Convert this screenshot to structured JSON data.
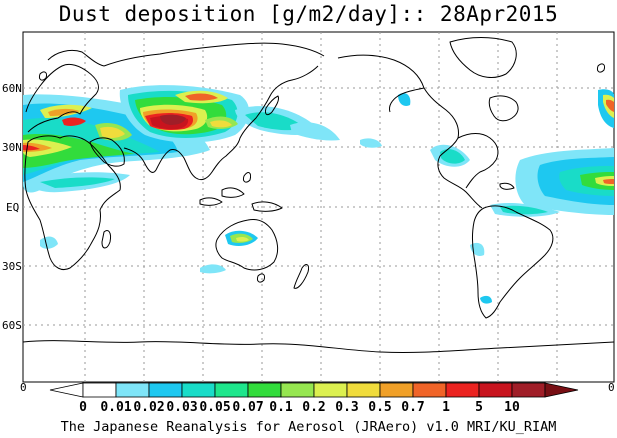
{
  "title": "Dust deposition [g/m2/day]:: 28Apr2015",
  "lat_labels": [
    "60N",
    "30N",
    "EQ",
    "30S",
    "60S"
  ],
  "colorbar": {
    "end_labels": [
      "0",
      "0"
    ],
    "tick_labels": [
      "0",
      "0.01",
      "0.02",
      "0.03",
      "0.05",
      "0.07",
      "0.1",
      "0.2",
      "0.3",
      "0.5",
      "0.7",
      "1",
      "5",
      "10"
    ],
    "colors": [
      "#ffffff",
      "#ffffff",
      "#7fe5f8",
      "#1ec8f0",
      "#19dcc8",
      "#1ee68c",
      "#32dc3c",
      "#96e650",
      "#dcf050",
      "#f0dc3c",
      "#f0a028",
      "#f06428",
      "#eb2320",
      "#c8141e",
      "#a01e28",
      "#780f14"
    ]
  },
  "footer": "The Japanese Reanalysis for Aerosol (JRAero) v1.0 MRI/KU_RIAM"
}
